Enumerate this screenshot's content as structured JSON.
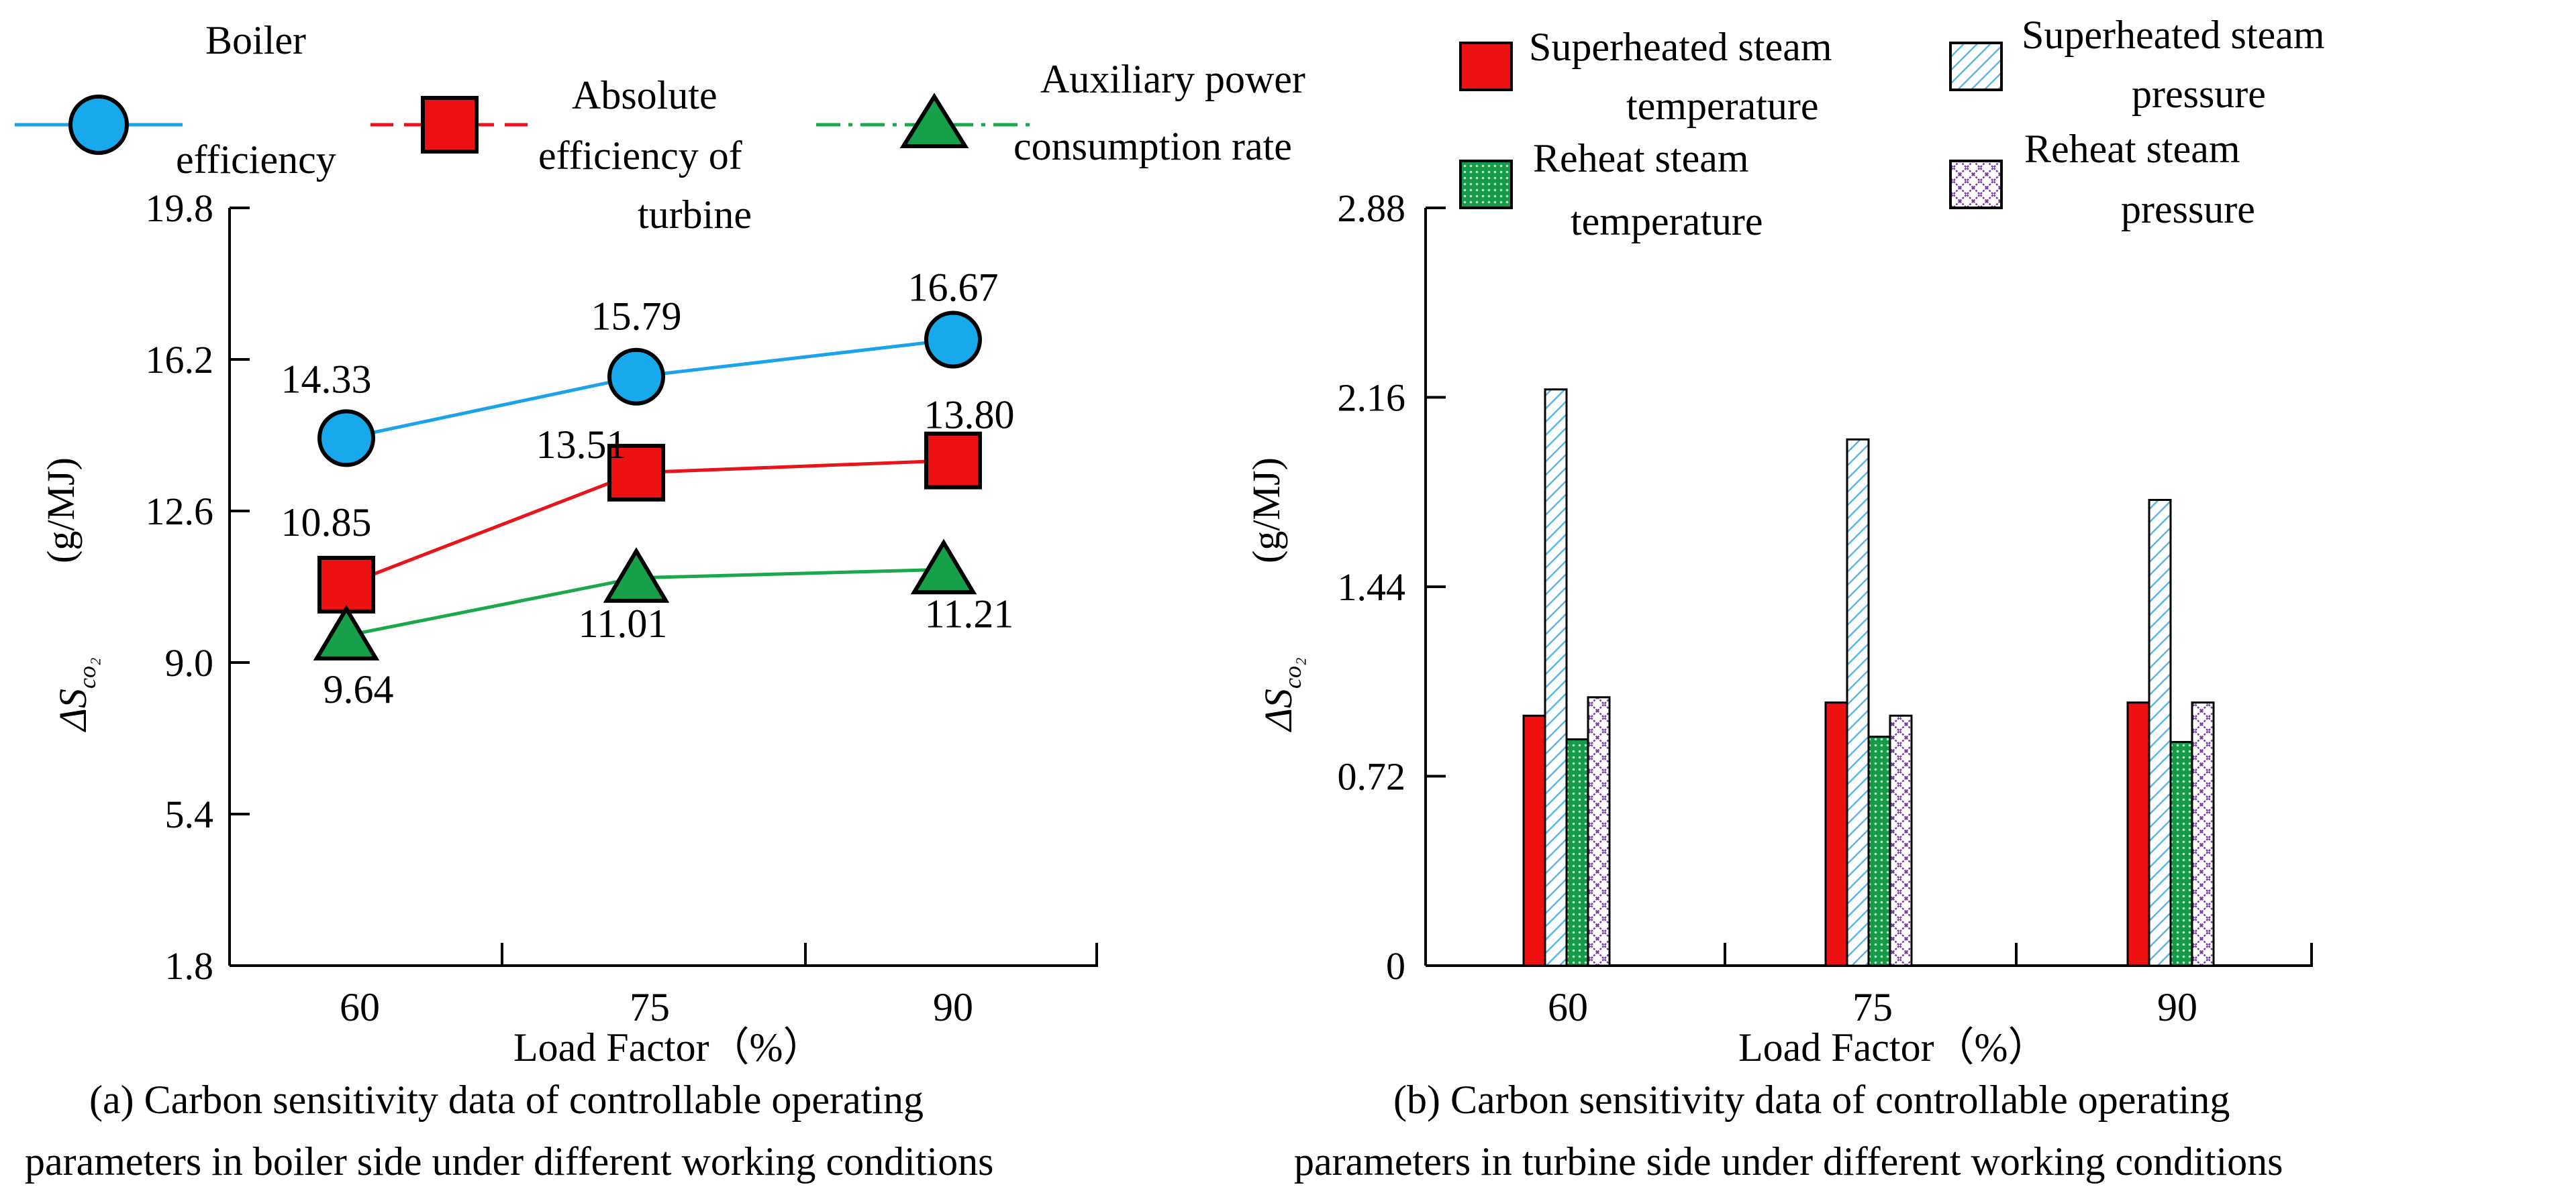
{
  "colors": {
    "boiler": "#1aa3e8",
    "boiler_fill": "#18a8ec",
    "turbine": "#e8141c",
    "turbine_fill": "#ee1111",
    "aux": "#1aa84a",
    "aux_fill": "#16a04a",
    "sh_temp": "#ee1111",
    "sh_pres": "#5ab6e8",
    "rh_temp": "#169a4a",
    "rh_pres": "#7a3aa8"
  },
  "chart_data": [
    {
      "type": "line",
      "xlabel": "Load Factor（%）",
      "ylabel_prefix": "ΔS",
      "ylabel_sub": "co₂",
      "ylabel_unit": "(g/MJ)",
      "categories": [
        "60",
        "75",
        "90"
      ],
      "ylim": [
        1.8,
        19.8
      ],
      "yticks": [
        "19.8",
        "16.2",
        "12.6",
        "9.0",
        "5.4",
        "1.8"
      ],
      "yticks_values": [
        19.8,
        16.2,
        12.6,
        9.0,
        5.4,
        1.8
      ],
      "series": [
        {
          "name": "Boiler efficiency",
          "legend_lines": [
            "Boiler",
            "efficiency"
          ],
          "values": [
            14.33,
            15.79,
            16.67
          ],
          "labels": [
            "14.33",
            "15.79",
            "16.67"
          ],
          "marker": "circle"
        },
        {
          "name": "Absolute efficiency of turbine",
          "legend_lines": [
            "Absolute",
            "efficiency of",
            "turbine"
          ],
          "values": [
            10.85,
            13.51,
            13.8
          ],
          "labels": [
            "10.85",
            "13.51",
            "13.80"
          ],
          "marker": "square"
        },
        {
          "name": "Auxiliary power consumption rate",
          "legend_lines": [
            "Auxiliary power",
            "consumption rate"
          ],
          "values": [
            9.64,
            11.01,
            11.21
          ],
          "labels": [
            "9.64",
            "11.01",
            "11.21"
          ],
          "marker": "triangle"
        }
      ],
      "caption_lines": [
        "(a) Carbon sensitivity data of controllable operating",
        "parameters in boiler side under different working conditions"
      ]
    },
    {
      "type": "bar",
      "xlabel": "Load Factor（%）",
      "ylabel_prefix": "ΔS",
      "ylabel_sub": "co₂",
      "ylabel_unit": "(g/MJ)",
      "categories": [
        "60",
        "75",
        "90"
      ],
      "ylim": [
        0,
        2.88
      ],
      "yticks": [
        "2.88",
        "2.16",
        "1.44",
        "0.72",
        "0"
      ],
      "yticks_values": [
        2.88,
        2.16,
        1.44,
        0.72,
        0
      ],
      "series": [
        {
          "name": "Superheated steam temperature",
          "legend_lines": [
            "Superheated steam",
            "temperature"
          ],
          "values": [
            0.95,
            1.0,
            1.0
          ]
        },
        {
          "name": "Superheated steam pressure",
          "legend_lines": [
            "Superheated steam",
            "pressure"
          ],
          "values": [
            2.19,
            2.0,
            1.77
          ]
        },
        {
          "name": "Reheat steam temperature",
          "legend_lines": [
            "Reheat steam",
            "temperature"
          ],
          "values": [
            0.86,
            0.87,
            0.85
          ]
        },
        {
          "name": "Reheat steam pressure",
          "legend_lines": [
            "Reheat steam",
            "pressure"
          ],
          "values": [
            1.02,
            0.95,
            1.0
          ]
        }
      ],
      "caption_lines": [
        "(b) Carbon sensitivity data of controllable operating",
        "parameters in turbine side under different working conditions"
      ]
    }
  ]
}
